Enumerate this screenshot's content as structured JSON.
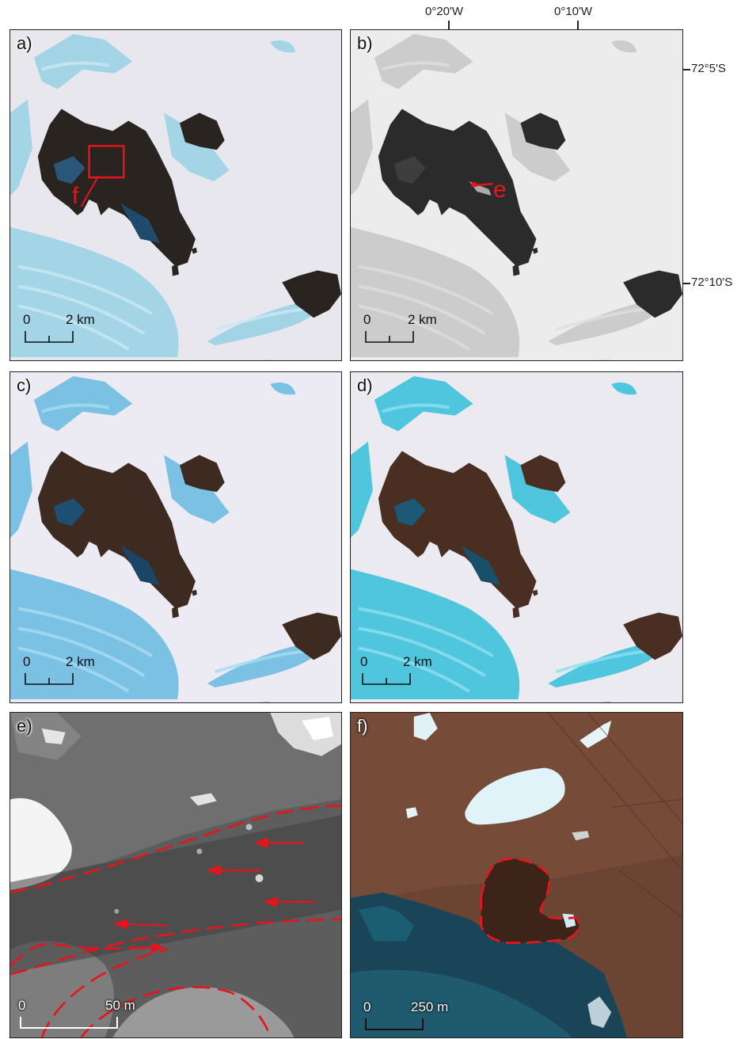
{
  "longitude_labels": [
    "0°20'W",
    "0°10'W"
  ],
  "latitude_labels": [
    "72°5'S",
    "72°10'S"
  ],
  "panels": {
    "a": {
      "label": "a)",
      "scale_zero": "0",
      "scale_dist": "2 km",
      "callout": "f"
    },
    "b": {
      "label": "b)",
      "scale_zero": "0",
      "scale_dist": "2 km",
      "callout": "e"
    },
    "c": {
      "label": "c)",
      "scale_zero": "0",
      "scale_dist": "2 km"
    },
    "d": {
      "label": "d)",
      "scale_zero": "0",
      "scale_dist": "2 km"
    },
    "e": {
      "label": "e)",
      "scale_zero": "0",
      "scale_dist": "50 m"
    },
    "f": {
      "label": "f)",
      "scale_zero": "0",
      "scale_dist": "250 m"
    }
  },
  "colors": {
    "annotation_red": "#e8141b",
    "snow": "#eae9f0",
    "blue_ice": "#7ec8e0",
    "rock": "#3b2a22",
    "bare_ice_dark": "#1d5f7f"
  }
}
